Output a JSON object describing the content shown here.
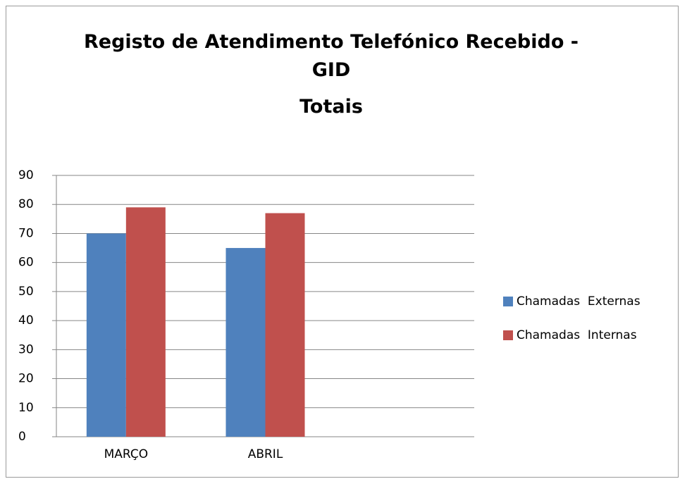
{
  "chart_data": {
    "type": "bar",
    "title": "Registo de Atendimento Telefónico Recebido - GID",
    "subtitle": "Totais",
    "categories": [
      "MARÇO",
      "ABRIL",
      null
    ],
    "series": [
      {
        "name": "Chamadas  Externas",
        "color": "#4f81bd",
        "values": [
          70,
          65,
          null
        ]
      },
      {
        "name": "Chamadas  Internas",
        "color": "#c0504d",
        "values": [
          79,
          77,
          null
        ]
      }
    ],
    "ylim": [
      0,
      90
    ],
    "yticks": [
      0,
      10,
      20,
      30,
      40,
      50,
      60,
      70,
      80,
      90
    ],
    "grid": true,
    "legend": "right"
  }
}
